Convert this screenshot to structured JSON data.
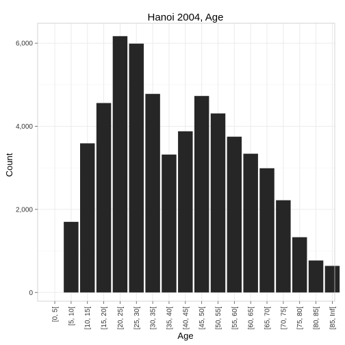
{
  "chart_data": {
    "type": "bar",
    "title": "Hanoi 2004, Age",
    "xlabel": "Age",
    "ylabel": "Count",
    "categories": [
      "[0, 5[",
      "[5, 10[",
      "[10, 15[",
      "[15, 20[",
      "[20, 25[",
      "[25, 30[",
      "[30, 35[",
      "[35, 40[",
      "[40, 45[",
      "[45, 50[",
      "[50, 55[",
      "[55, 60[",
      "[60, 65[",
      "[65, 70[",
      "[70, 75[",
      "[75, 80[",
      "[80, 85[",
      "[85, Inf["
    ],
    "values": [
      0,
      1700,
      3590,
      4560,
      6170,
      5990,
      4780,
      3320,
      3880,
      4730,
      4310,
      3750,
      3340,
      2990,
      2220,
      1330,
      770,
      640
    ],
    "yticks": [
      0,
      2000,
      4000,
      6000
    ],
    "ytick_labels": [
      "0",
      "2,000",
      "4,000",
      "6,000"
    ],
    "ylim": [
      -210,
      6480
    ],
    "bar_color": "#262626",
    "grid": true,
    "legend": "none"
  }
}
